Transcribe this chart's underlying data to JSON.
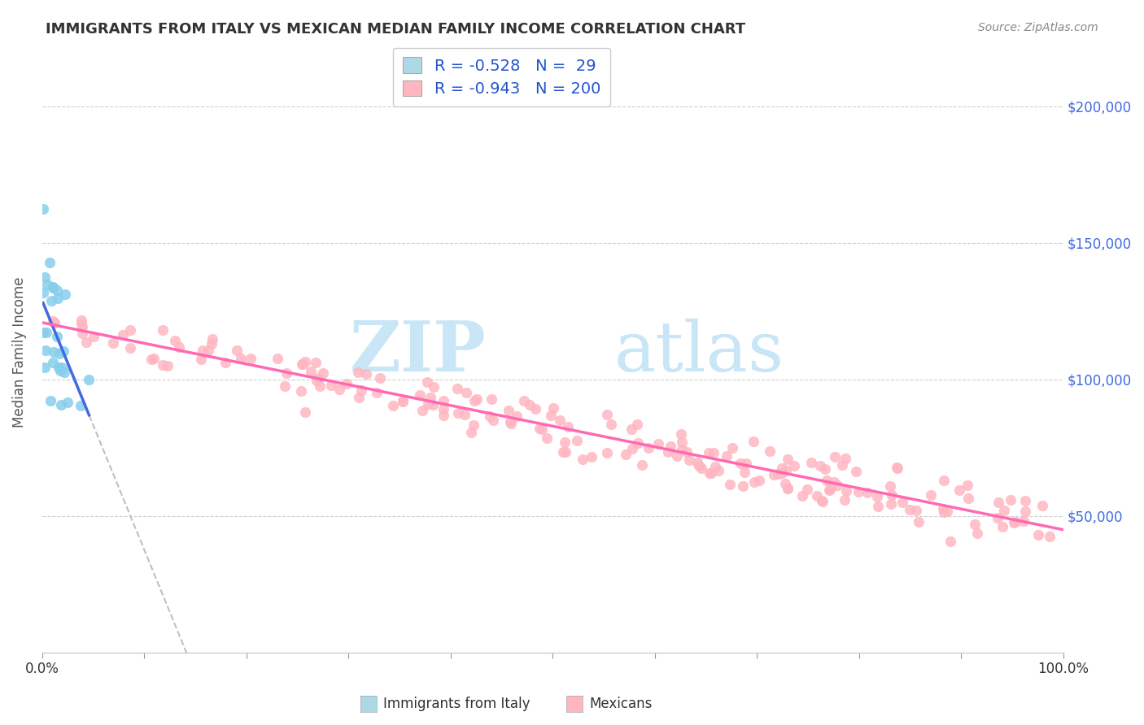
{
  "title": "IMMIGRANTS FROM ITALY VS MEXICAN MEDIAN FAMILY INCOME CORRELATION CHART",
  "source": "Source: ZipAtlas.com",
  "ylabel": "Median Family Income",
  "y_ticks": [
    50000,
    100000,
    150000,
    200000
  ],
  "y_tick_labels": [
    "$50,000",
    "$100,000",
    "$150,000",
    "$200,000"
  ],
  "xlim": [
    0.0,
    1.0
  ],
  "ylim": [
    0,
    220000
  ],
  "italy_R": -0.528,
  "italy_N": 29,
  "mexican_R": -0.943,
  "mexican_N": 200,
  "italy_color": "#87CEEB",
  "italy_line_color": "#4169E1",
  "mexican_color": "#FFB6C1",
  "mexican_line_color": "#FF69B4",
  "dashed_line_color": "#C0C0C0",
  "legend_italy_color": "#ADD8E6",
  "legend_mexican_color": "#FFB6C1",
  "watermark_zip": "ZIP",
  "watermark_atlas": "atlas",
  "watermark_color_zip": "#C8E6F5",
  "watermark_color_atlas": "#C8E6F5"
}
